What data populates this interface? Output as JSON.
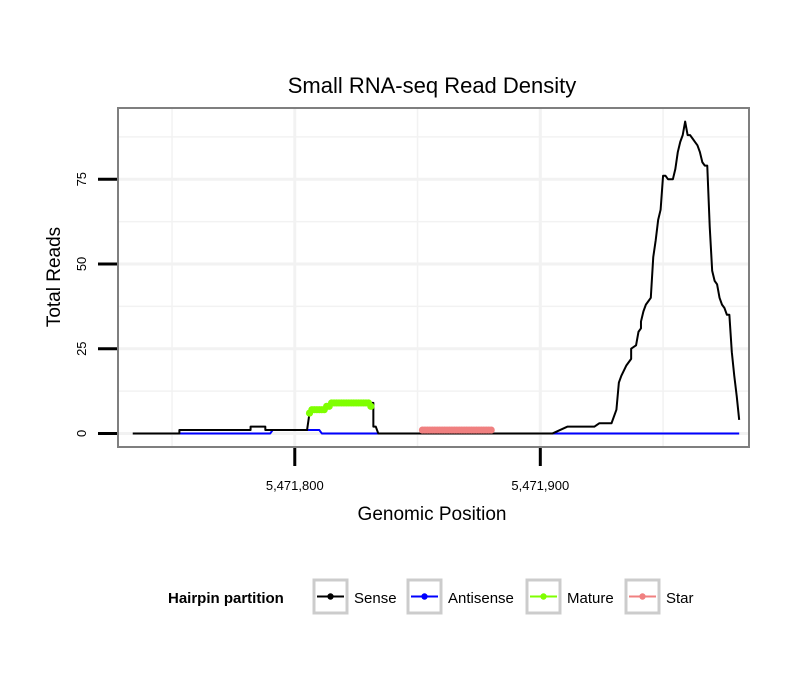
{
  "chart_data": {
    "type": "line",
    "title": "Small RNA-seq Read Density",
    "xlabel": "Genomic Position",
    "ylabel": "Total Reads",
    "xlim": [
      5471728,
      5471985
    ],
    "ylim": [
      -4,
      96
    ],
    "x_ticks": [
      5471800,
      5471900
    ],
    "x_tick_labels": [
      "5,471,800",
      "5,471,900"
    ],
    "y_ticks": [
      0,
      25,
      50,
      75
    ],
    "y_tick_labels": [
      "0",
      "25",
      "50",
      "75"
    ],
    "x_minor_grid": [
      5471750,
      5471850,
      5471950
    ],
    "y_minor_grid": [
      12.5,
      37.5,
      62.5,
      87.5
    ],
    "grid": true,
    "legend": {
      "title": "Hairpin partition",
      "position": "bottom",
      "entries": [
        {
          "label": "Sense",
          "color": "#000000"
        },
        {
          "label": "Antisense",
          "color": "#0000ff"
        },
        {
          "label": "Mature",
          "color": "#7fff00"
        },
        {
          "label": "Star",
          "color": "#f08080"
        }
      ]
    },
    "series": [
      {
        "name": "Sense",
        "color": "#000000",
        "markers": false,
        "points": [
          [
            5471734,
            0
          ],
          [
            5471753,
            0
          ],
          [
            5471753,
            1
          ],
          [
            5471782,
            1
          ],
          [
            5471782,
            2
          ],
          [
            5471788,
            2
          ],
          [
            5471788,
            1
          ],
          [
            5471805,
            1
          ],
          [
            5471806,
            6
          ],
          [
            5471809,
            7
          ],
          [
            5471812,
            7
          ],
          [
            5471813,
            8
          ],
          [
            5471816,
            9
          ],
          [
            5471829,
            9
          ],
          [
            5471832,
            9
          ],
          [
            5471832,
            2
          ],
          [
            5471833,
            2
          ],
          [
            5471834,
            0
          ],
          [
            5471905,
            0
          ],
          [
            5471911,
            2
          ],
          [
            5471922,
            2
          ],
          [
            5471924,
            3
          ],
          [
            5471929,
            3
          ],
          [
            5471931,
            7
          ],
          [
            5471932,
            15
          ],
          [
            5471933,
            17
          ],
          [
            5471935,
            20
          ],
          [
            5471937,
            22
          ],
          [
            5471937,
            25
          ],
          [
            5471939,
            26
          ],
          [
            5471940,
            30
          ],
          [
            5471941,
            31
          ],
          [
            5471941,
            33
          ],
          [
            5471942,
            36
          ],
          [
            5471943,
            38
          ],
          [
            5471944,
            39
          ],
          [
            5471945,
            40
          ],
          [
            5471946,
            52
          ],
          [
            5471947,
            57
          ],
          [
            5471948,
            63
          ],
          [
            5471949,
            66
          ],
          [
            5471950,
            76
          ],
          [
            5471951,
            76
          ],
          [
            5471952,
            75
          ],
          [
            5471953,
            75
          ],
          [
            5471954,
            75
          ],
          [
            5471955,
            78
          ],
          [
            5471956,
            83
          ],
          [
            5471957,
            86
          ],
          [
            5471958,
            88
          ],
          [
            5471959,
            92
          ],
          [
            5471960,
            88
          ],
          [
            5471961,
            88
          ],
          [
            5471962,
            87
          ],
          [
            5471963,
            86
          ],
          [
            5471964,
            85
          ],
          [
            5471965,
            83
          ],
          [
            5471966,
            80
          ],
          [
            5471967,
            79
          ],
          [
            5471968,
            79
          ],
          [
            5471969,
            61
          ],
          [
            5471970,
            48
          ],
          [
            5471971,
            45
          ],
          [
            5471972,
            44
          ],
          [
            5471973,
            40
          ],
          [
            5471974,
            38
          ],
          [
            5471975,
            37
          ],
          [
            5471976,
            35
          ],
          [
            5471977,
            35
          ],
          [
            5471978,
            24
          ],
          [
            5471979,
            17
          ],
          [
            5471980,
            11
          ],
          [
            5471981,
            4
          ]
        ]
      },
      {
        "name": "Antisense",
        "color": "#0000ff",
        "markers": false,
        "points": [
          [
            5471750,
            0
          ],
          [
            5471790,
            0
          ],
          [
            5471791,
            1
          ],
          [
            5471800,
            1
          ],
          [
            5471802,
            1
          ],
          [
            5471810,
            1
          ],
          [
            5471811,
            0
          ],
          [
            5471981,
            0
          ]
        ]
      },
      {
        "name": "Mature",
        "color": "#7fff00",
        "markers": true,
        "points": [
          [
            5471806,
            6
          ],
          [
            5471807,
            7
          ],
          [
            5471808,
            7
          ],
          [
            5471809,
            7
          ],
          [
            5471810,
            7
          ],
          [
            5471811,
            7
          ],
          [
            5471812,
            7
          ],
          [
            5471813,
            8
          ],
          [
            5471814,
            8
          ],
          [
            5471815,
            9
          ],
          [
            5471816,
            9
          ],
          [
            5471817,
            9
          ],
          [
            5471818,
            9
          ],
          [
            5471819,
            9
          ],
          [
            5471820,
            9
          ],
          [
            5471821,
            9
          ],
          [
            5471822,
            9
          ],
          [
            5471823,
            9
          ],
          [
            5471824,
            9
          ],
          [
            5471825,
            9
          ],
          [
            5471826,
            9
          ],
          [
            5471827,
            9
          ],
          [
            5471828,
            9
          ],
          [
            5471829,
            9
          ],
          [
            5471830,
            9
          ],
          [
            5471831,
            8
          ]
        ]
      },
      {
        "name": "Star",
        "color": "#f08080",
        "markers": true,
        "points": [
          [
            5471852,
            1
          ],
          [
            5471853,
            1
          ],
          [
            5471854,
            1
          ],
          [
            5471855,
            1
          ],
          [
            5471856,
            1
          ],
          [
            5471857,
            1
          ],
          [
            5471858,
            1
          ],
          [
            5471859,
            1
          ],
          [
            5471860,
            1
          ],
          [
            5471861,
            1
          ],
          [
            5471862,
            1
          ],
          [
            5471863,
            1
          ],
          [
            5471864,
            1
          ],
          [
            5471865,
            1
          ],
          [
            5471866,
            1
          ],
          [
            5471867,
            1
          ],
          [
            5471868,
            1
          ],
          [
            5471869,
            1
          ],
          [
            5471870,
            1
          ],
          [
            5471871,
            1
          ],
          [
            5471872,
            1
          ],
          [
            5471873,
            1
          ],
          [
            5471874,
            1
          ],
          [
            5471875,
            1
          ],
          [
            5471876,
            1
          ],
          [
            5471877,
            1
          ],
          [
            5471878,
            1
          ],
          [
            5471879,
            1
          ],
          [
            5471880,
            1
          ]
        ]
      }
    ]
  }
}
